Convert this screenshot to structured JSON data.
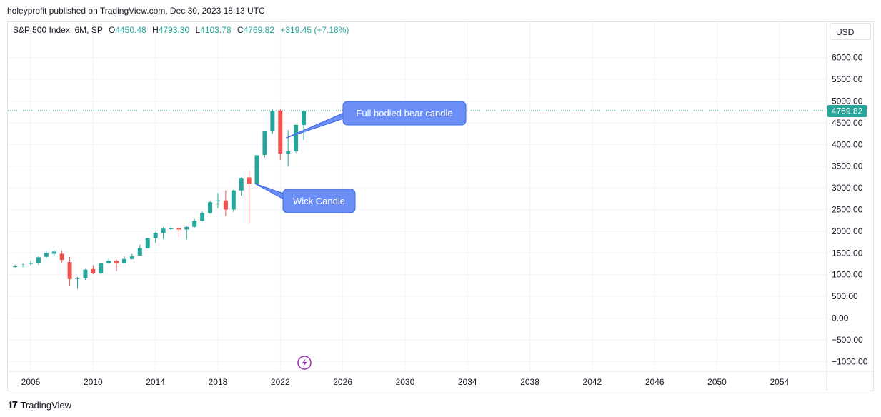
{
  "header": {
    "published": "holeyprofit published on TradingView.com, Dec 30, 2023 18:13 UTC"
  },
  "legend": {
    "symbol": "S&P 500 Index, 6M, SP",
    "o_label": "O",
    "o_value": "4450.48",
    "h_label": "H",
    "h_value": "4793.30",
    "l_label": "L",
    "l_value": "4103.78",
    "c_label": "C",
    "c_value": "4769.82",
    "change": "+319.45 (+7.18%)"
  },
  "currency_button": "USD",
  "footer": {
    "brand": "TradingView"
  },
  "colors": {
    "up": "#26a69a",
    "down": "#ef5350",
    "callout": "#6b8ff7",
    "callout_border": "#3a68e8",
    "grid": "#f0f3fa"
  },
  "chart_data": {
    "type": "candlestick",
    "y_ticks": [
      6000,
      5500,
      5000,
      4500,
      4000,
      3500,
      3000,
      2500,
      2000,
      1500,
      1000,
      500,
      0,
      -500,
      -1000
    ],
    "y_tick_labels": [
      "6000.00",
      "5500.00",
      "5000.00",
      "4500.00",
      "4000.00",
      "3500.00",
      "3000.00",
      "2500.00",
      "2000.00",
      "1500.00",
      "1000.00",
      "500.00",
      "0.00",
      "−500.00",
      "−1000.00"
    ],
    "x_ticks": [
      2006,
      2010,
      2014,
      2018,
      2022,
      2026,
      2030,
      2034,
      2038,
      2042,
      2046,
      2050,
      2054
    ],
    "x_tick_labels": [
      "2006",
      "2010",
      "2014",
      "2018",
      "2022",
      "2026",
      "2030",
      "2034",
      "2038",
      "2042",
      "2046",
      "2050",
      "2054"
    ],
    "last_price": 4769.82,
    "last_price_label": "4769.82",
    "candles": [
      {
        "t": 2005.0,
        "o": 1180,
        "h": 1230,
        "l": 1140,
        "c": 1195
      },
      {
        "t": 2005.5,
        "o": 1195,
        "h": 1275,
        "l": 1170,
        "c": 1210
      },
      {
        "t": 2006.0,
        "o": 1250,
        "h": 1330,
        "l": 1220,
        "c": 1275
      },
      {
        "t": 2006.5,
        "o": 1275,
        "h": 1420,
        "l": 1220,
        "c": 1400
      },
      {
        "t": 2007.0,
        "o": 1410,
        "h": 1550,
        "l": 1370,
        "c": 1500
      },
      {
        "t": 2007.5,
        "o": 1480,
        "h": 1570,
        "l": 1430,
        "c": 1530
      },
      {
        "t": 2008.0,
        "o": 1480,
        "h": 1560,
        "l": 1280,
        "c": 1340
      },
      {
        "t": 2008.5,
        "o": 1290,
        "h": 1410,
        "l": 750,
        "c": 900
      },
      {
        "t": 2009.0,
        "o": 900,
        "h": 950,
        "l": 670,
        "c": 920
      },
      {
        "t": 2009.5,
        "o": 920,
        "h": 1130,
        "l": 880,
        "c": 1115
      },
      {
        "t": 2010.0,
        "o": 1130,
        "h": 1220,
        "l": 1010,
        "c": 1030
      },
      {
        "t": 2010.5,
        "o": 1030,
        "h": 1270,
        "l": 1010,
        "c": 1260
      },
      {
        "t": 2011.0,
        "o": 1270,
        "h": 1370,
        "l": 1250,
        "c": 1320
      },
      {
        "t": 2011.5,
        "o": 1320,
        "h": 1350,
        "l": 1080,
        "c": 1260
      },
      {
        "t": 2012.0,
        "o": 1260,
        "h": 1420,
        "l": 1260,
        "c": 1360
      },
      {
        "t": 2012.5,
        "o": 1360,
        "h": 1480,
        "l": 1350,
        "c": 1420
      },
      {
        "t": 2013.0,
        "o": 1440,
        "h": 1690,
        "l": 1440,
        "c": 1610
      },
      {
        "t": 2013.5,
        "o": 1610,
        "h": 1850,
        "l": 1600,
        "c": 1840
      },
      {
        "t": 2014.0,
        "o": 1840,
        "h": 1980,
        "l": 1740,
        "c": 1960
      },
      {
        "t": 2014.5,
        "o": 1960,
        "h": 2090,
        "l": 1820,
        "c": 2060
      },
      {
        "t": 2015.0,
        "o": 2060,
        "h": 2135,
        "l": 2030,
        "c": 2065
      },
      {
        "t": 2015.5,
        "o": 2065,
        "h": 2110,
        "l": 1870,
        "c": 2040
      },
      {
        "t": 2016.0,
        "o": 2040,
        "h": 2120,
        "l": 1810,
        "c": 2100
      },
      {
        "t": 2016.5,
        "o": 2100,
        "h": 2280,
        "l": 2080,
        "c": 2240
      },
      {
        "t": 2017.0,
        "o": 2240,
        "h": 2450,
        "l": 2230,
        "c": 2420
      },
      {
        "t": 2017.5,
        "o": 2420,
        "h": 2690,
        "l": 2400,
        "c": 2670
      },
      {
        "t": 2018.0,
        "o": 2690,
        "h": 2880,
        "l": 2530,
        "c": 2710
      },
      {
        "t": 2018.5,
        "o": 2710,
        "h": 2940,
        "l": 2350,
        "c": 2500
      },
      {
        "t": 2019.0,
        "o": 2500,
        "h": 2960,
        "l": 2440,
        "c": 2940
      },
      {
        "t": 2019.5,
        "o": 2940,
        "h": 3250,
        "l": 2820,
        "c": 3230
      },
      {
        "t": 2020.0,
        "o": 3240,
        "h": 3390,
        "l": 2190,
        "c": 3100
      },
      {
        "t": 2020.5,
        "o": 3100,
        "h": 3760,
        "l": 3100,
        "c": 3750
      },
      {
        "t": 2021.0,
        "o": 3760,
        "h": 4300,
        "l": 3700,
        "c": 4300
      },
      {
        "t": 2021.5,
        "o": 4300,
        "h": 4820,
        "l": 4250,
        "c": 4770
      },
      {
        "t": 2022.0,
        "o": 4780,
        "h": 4820,
        "l": 3640,
        "c": 3790
      },
      {
        "t": 2022.5,
        "o": 3790,
        "h": 4330,
        "l": 3490,
        "c": 3840
      },
      {
        "t": 2023.0,
        "o": 3840,
        "h": 4460,
        "l": 3810,
        "c": 4450
      },
      {
        "t": 2023.5,
        "o": 4450,
        "h": 4793.3,
        "l": 4103.78,
        "c": 4769.82
      }
    ],
    "annotations": [
      {
        "text": "Full bodied bear candle",
        "anchor_t": 2022.5,
        "anchor_p": 4150
      },
      {
        "text": "Wick Candle",
        "anchor_t": 2020.5,
        "anchor_p": 3100
      }
    ]
  }
}
